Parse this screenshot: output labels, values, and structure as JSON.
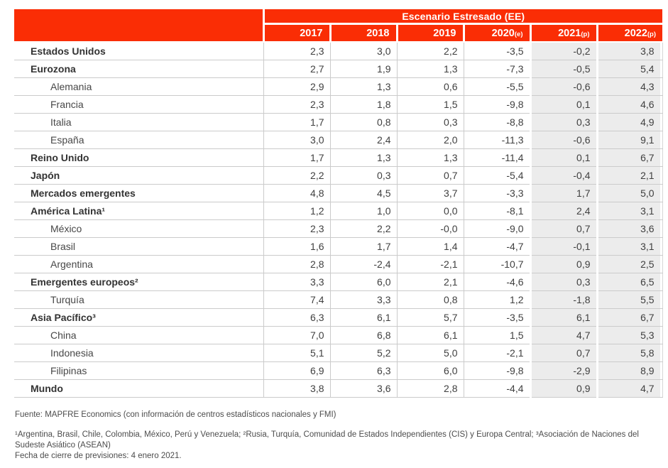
{
  "colors": {
    "header_red": "#fa2d05",
    "shaded_column": "#ececec",
    "grid_line": "#cbcbcb"
  },
  "table": {
    "scenario_header": "Escenario Estresado (EE)",
    "columns": [
      {
        "year": "2017",
        "suffix": ""
      },
      {
        "year": "2018",
        "suffix": ""
      },
      {
        "year": "2019",
        "suffix": ""
      },
      {
        "year": "2020",
        "suffix": "(e)"
      },
      {
        "year": "2021",
        "suffix": "(p)"
      },
      {
        "year": "2022",
        "suffix": "(p)"
      }
    ],
    "rows": [
      {
        "label": "Estados Unidos",
        "level": "group",
        "values": [
          "2,3",
          "3,0",
          "2,2",
          "-3,5",
          "-0,2",
          "3,8"
        ]
      },
      {
        "label": "Eurozona",
        "level": "group",
        "values": [
          "2,7",
          "1,9",
          "1,3",
          "-7,3",
          "-0,5",
          "5,4"
        ]
      },
      {
        "label": "Alemania",
        "level": "sub",
        "values": [
          "2,9",
          "1,3",
          "0,6",
          "-5,5",
          "-0,6",
          "4,3"
        ]
      },
      {
        "label": "Francia",
        "level": "sub",
        "values": [
          "2,3",
          "1,8",
          "1,5",
          "-9,8",
          "0,1",
          "4,6"
        ]
      },
      {
        "label": "Italia",
        "level": "sub",
        "values": [
          "1,7",
          "0,8",
          "0,3",
          "-8,8",
          "0,3",
          "4,9"
        ]
      },
      {
        "label": "España",
        "level": "sub",
        "values": [
          "3,0",
          "2,4",
          "2,0",
          "-11,3",
          "-0,6",
          "9,1"
        ]
      },
      {
        "label": "Reino Unido",
        "level": "group",
        "values": [
          "1,7",
          "1,3",
          "1,3",
          "-11,4",
          "0,1",
          "6,7"
        ]
      },
      {
        "label": "Japón",
        "level": "group",
        "values": [
          "2,2",
          "0,3",
          "0,7",
          "-5,4",
          "-0,4",
          "2,1"
        ]
      },
      {
        "label": "Mercados emergentes",
        "level": "group",
        "values": [
          "4,8",
          "4,5",
          "3,7",
          "-3,3",
          "1,7",
          "5,0"
        ]
      },
      {
        "label": "América Latina¹",
        "level": "group",
        "values": [
          "1,2",
          "1,0",
          "0,0",
          "-8,1",
          "2,4",
          "3,1"
        ]
      },
      {
        "label": "México",
        "level": "sub",
        "values": [
          "2,3",
          "2,2",
          "-0,0",
          "-9,0",
          "0,7",
          "3,6"
        ]
      },
      {
        "label": "Brasil",
        "level": "sub",
        "values": [
          "1,6",
          "1,7",
          "1,4",
          "-4,7",
          "-0,1",
          "3,1"
        ]
      },
      {
        "label": "Argentina",
        "level": "sub",
        "values": [
          "2,8",
          "-2,4",
          "-2,1",
          "-10,7",
          "0,9",
          "2,5"
        ]
      },
      {
        "label": "Emergentes europeos²",
        "level": "group",
        "values": [
          "3,3",
          "6,0",
          "2,1",
          "-4,6",
          "0,3",
          "6,5"
        ]
      },
      {
        "label": "Turquía",
        "level": "sub",
        "values": [
          "7,4",
          "3,3",
          "0,8",
          "1,2",
          "-1,8",
          "5,5"
        ]
      },
      {
        "label": "Asia Pacífico³",
        "level": "group",
        "values": [
          "6,3",
          "6,1",
          "5,7",
          "-3,5",
          "6,1",
          "6,7"
        ]
      },
      {
        "label": "China",
        "level": "sub",
        "values": [
          "7,0",
          "6,8",
          "6,1",
          "1,5",
          "4,7",
          "5,3"
        ]
      },
      {
        "label": "Indonesia",
        "level": "sub",
        "values": [
          "5,1",
          "5,2",
          "5,0",
          "-2,1",
          "0,7",
          "5,8"
        ]
      },
      {
        "label": "Filipinas",
        "level": "sub",
        "values": [
          "6,9",
          "6,3",
          "6,0",
          "-9,8",
          "-2,9",
          "8,9"
        ]
      },
      {
        "label": "Mundo",
        "level": "group",
        "values": [
          "3,8",
          "3,6",
          "2,8",
          "-4,4",
          "0,9",
          "4,7"
        ]
      }
    ]
  },
  "footer": {
    "source": "Fuente: MAPFRE Economics (con información de centros estadísticos nacionales y FMI)",
    "notes": "¹Argentina, Brasil, Chile, Colombia, México, Perú y Venezuela; ²Rusia, Turquía, Comunidad de Estados Independientes (CIS) y Europa Central; ³Asociación de Naciones del Sudeste Asiático (ASEAN)",
    "closing_date": "Fecha de cierre de previsiones: 4 enero 2021."
  }
}
